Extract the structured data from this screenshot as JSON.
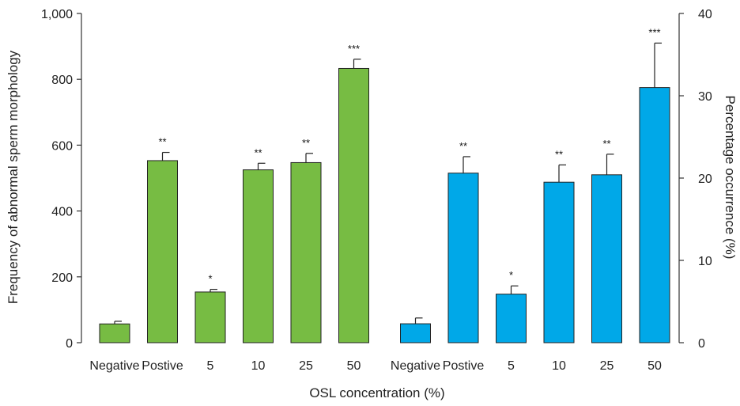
{
  "chart_data": {
    "type": "bar",
    "xlabel": "OSL concentration (%)",
    "ylabel_left": "Frequency of abnormal sperm morphology",
    "ylabel_right": "Percentage occurrence (%)",
    "ylim_left": [
      0,
      1000
    ],
    "ylim_right": [
      0,
      40
    ],
    "yticks_left": [
      "0",
      "200",
      "400",
      "600",
      "800",
      "1,000"
    ],
    "yticks_right": [
      "0",
      "10",
      "20",
      "30",
      "40"
    ],
    "grid": false,
    "series": [
      {
        "axis": "left",
        "color": "#77bc43",
        "categories": [
          "Negative",
          "Postive",
          "5",
          "10",
          "25",
          "50"
        ],
        "values": [
          57,
          553,
          154,
          525,
          547,
          833
        ],
        "errors": [
          8,
          25,
          8,
          20,
          28,
          28
        ],
        "significance": [
          "",
          "**",
          "*",
          "**",
          "**",
          "***"
        ]
      },
      {
        "axis": "right",
        "color": "#00a8e8",
        "categories": [
          "Negative",
          "Postive",
          "5",
          "10",
          "25",
          "50"
        ],
        "values": [
          2.3,
          20.6,
          5.9,
          19.5,
          20.4,
          31.0
        ],
        "errors": [
          0.7,
          2.0,
          1.0,
          2.1,
          2.5,
          5.4
        ],
        "significance": [
          "",
          "**",
          "*",
          "**",
          "**",
          "***"
        ]
      }
    ]
  }
}
